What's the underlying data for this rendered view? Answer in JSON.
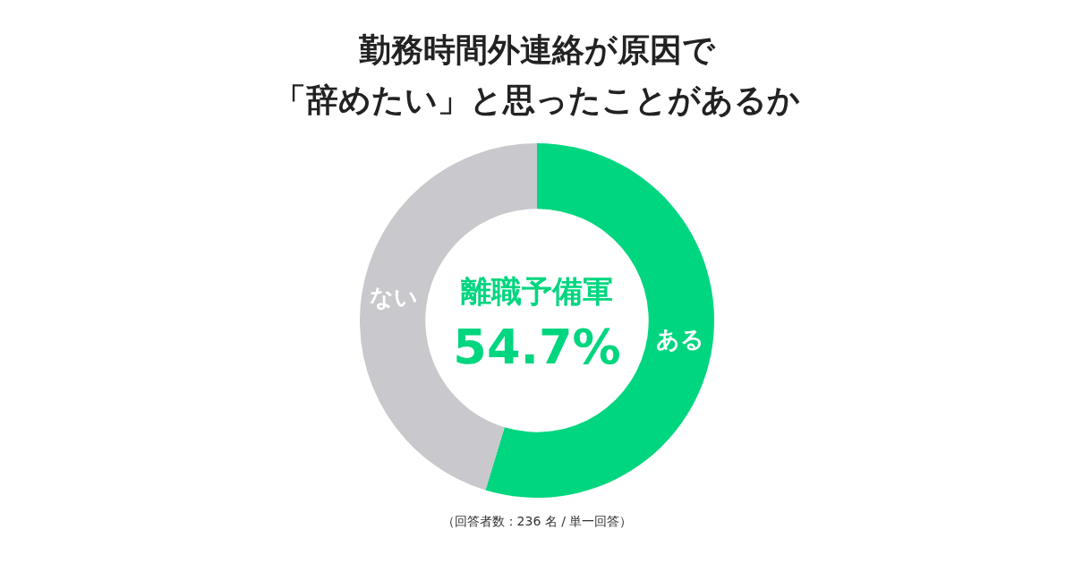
{
  "chart_data": {
    "type": "donut",
    "title": "勤務時間外連絡が原因で「辞めたい」と思ったことがあるか",
    "categories": [
      "ある",
      "ない"
    ],
    "values": [
      54.7,
      45.3
    ],
    "colors": [
      "#00d67f",
      "#c9c8cc"
    ],
    "annotations": [
      "離職予備軍",
      "54.7%",
      "（回答者数：236 名 / 単一回答）"
    ]
  }
}
